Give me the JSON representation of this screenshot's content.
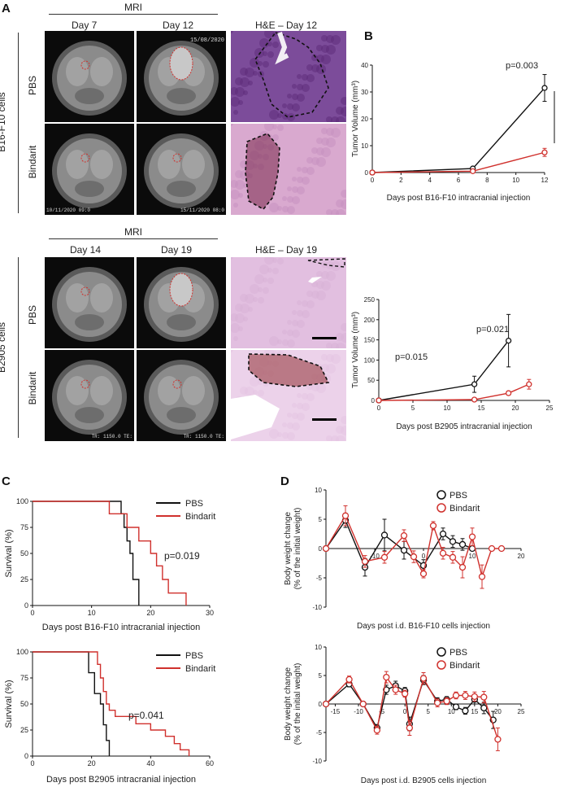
{
  "panel_labels": {
    "a": "A",
    "b": "B",
    "c": "C",
    "d": "D"
  },
  "panelA": {
    "top": {
      "mri_header": "MRI",
      "col_days": [
        "Day 7",
        "Day 12"
      ],
      "he_header": "H&E – Day 12",
      "rows": [
        "PBS",
        "Bindarit"
      ],
      "side_label": "B16-F10 cells",
      "overlay_texts": {
        "r0c1": "15/08/2020",
        "r1c0": "10/11/2020 09:0",
        "r1c1": "15/11/2020 08:0"
      }
    },
    "bottom": {
      "mri_header": "MRI",
      "col_days": [
        "Day 14",
        "Day 19"
      ],
      "he_header": "H&E – Day 19",
      "rows": [
        "PBS",
        "Bindarit"
      ],
      "side_label": "B2905 cells",
      "overlay_texts": {
        "r1c0": "TR: 1150.0 TE:",
        "r1c1": "TR: 1150.0 TE:"
      }
    }
  },
  "colors": {
    "pbs": "#111111",
    "bindarit": "#d0312d",
    "he_pink": "#c8a0c8",
    "he_purple": "#7a3a8c"
  },
  "chart_data": [
    {
      "id": "B1",
      "type": "line",
      "ylabel": "Tumor Volume (mm³)",
      "xlabel": "Days post B16-F10 intracranial injection",
      "xlim": [
        0,
        12
      ],
      "ylim": [
        0,
        40
      ],
      "xticks": [
        0,
        2,
        4,
        6,
        8,
        10,
        12
      ],
      "yticks": [
        0,
        10,
        20,
        30,
        40
      ],
      "series": [
        {
          "color": "#111111",
          "x": [
            0,
            7,
            12
          ],
          "y": [
            0,
            1.5,
            31.5
          ],
          "err": [
            0,
            0.5,
            5
          ]
        },
        {
          "color": "#d0312d",
          "x": [
            0,
            7,
            12
          ],
          "y": [
            0,
            0.5,
            7.5
          ],
          "err": [
            0,
            0.3,
            1.5
          ]
        }
      ],
      "annotations": [
        "p=0.003"
      ]
    },
    {
      "id": "B2",
      "type": "line",
      "ylabel": "Tumor Volume (mm³)",
      "xlabel": "Days post B2905 intracranial injection",
      "xlim": [
        0,
        25
      ],
      "ylim": [
        0,
        250
      ],
      "xticks": [
        0,
        5,
        10,
        15,
        20,
        25
      ],
      "yticks": [
        0,
        50,
        100,
        150,
        200,
        250
      ],
      "series": [
        {
          "color": "#111111",
          "x": [
            0,
            14,
            19
          ],
          "y": [
            0,
            40,
            148
          ],
          "err": [
            0,
            20,
            65
          ]
        },
        {
          "color": "#d0312d",
          "x": [
            0,
            14,
            19,
            22
          ],
          "y": [
            0,
            2,
            18,
            40
          ],
          "err": [
            0,
            1,
            5,
            12
          ]
        }
      ],
      "annotations": [
        "p=0.015",
        "p=0.021"
      ]
    },
    {
      "id": "C1",
      "type": "line",
      "ylabel": "Survival (%)",
      "xlabel": "Days post B16-F10 intracranial injection",
      "xlim": [
        0,
        30
      ],
      "ylim": [
        0,
        100
      ],
      "xticks": [
        0,
        10,
        20,
        30
      ],
      "yticks": [
        0,
        25,
        50,
        75,
        100
      ],
      "series": [
        {
          "name": "PBS",
          "color": "#111111",
          "steps": [
            [
              0,
              100
            ],
            [
              15,
              100
            ],
            [
              15,
              88
            ],
            [
              15.5,
              88
            ],
            [
              15.5,
              75
            ],
            [
              16,
              75
            ],
            [
              16,
              62
            ],
            [
              16.5,
              62
            ],
            [
              16.5,
              50
            ],
            [
              17,
              50
            ],
            [
              17,
              25
            ],
            [
              18,
              25
            ],
            [
              18,
              0
            ]
          ]
        },
        {
          "name": "Bindarit",
          "color": "#d0312d",
          "steps": [
            [
              0,
              100
            ],
            [
              13,
              100
            ],
            [
              13,
              88
            ],
            [
              16,
              88
            ],
            [
              16,
              75
            ],
            [
              18,
              75
            ],
            [
              18,
              62
            ],
            [
              20,
              62
            ],
            [
              20,
              50
            ],
            [
              21,
              50
            ],
            [
              21,
              38
            ],
            [
              22,
              38
            ],
            [
              22,
              25
            ],
            [
              23,
              25
            ],
            [
              23,
              12
            ],
            [
              26,
              12
            ],
            [
              26,
              0
            ]
          ]
        }
      ],
      "annotations": [
        "p=0.019"
      ]
    },
    {
      "id": "C2",
      "type": "line",
      "ylabel": "Survival (%)",
      "xlabel": "Days post B2905 intracranial injection",
      "xlim": [
        0,
        60
      ],
      "ylim": [
        0,
        100
      ],
      "xticks": [
        0,
        20,
        40,
        60
      ],
      "yticks": [
        0,
        25,
        50,
        75,
        100
      ],
      "series": [
        {
          "name": "PBS",
          "color": "#111111",
          "steps": [
            [
              0,
              100
            ],
            [
              19,
              100
            ],
            [
              19,
              80
            ],
            [
              21,
              80
            ],
            [
              21,
              60
            ],
            [
              23,
              60
            ],
            [
              23,
              50
            ],
            [
              24,
              50
            ],
            [
              24,
              30
            ],
            [
              25,
              30
            ],
            [
              25,
              15
            ],
            [
              26,
              15
            ],
            [
              26,
              0
            ]
          ]
        },
        {
          "name": "Bindarit",
          "color": "#d0312d",
          "steps": [
            [
              0,
              100
            ],
            [
              22,
              100
            ],
            [
              22,
              88
            ],
            [
              23,
              88
            ],
            [
              23,
              75
            ],
            [
              24,
              75
            ],
            [
              24,
              62
            ],
            [
              25,
              62
            ],
            [
              25,
              50
            ],
            [
              26,
              50
            ],
            [
              26,
              44
            ],
            [
              28,
              44
            ],
            [
              28,
              38
            ],
            [
              35,
              38
            ],
            [
              35,
              31
            ],
            [
              40,
              31
            ],
            [
              40,
              25
            ],
            [
              45,
              25
            ],
            [
              45,
              19
            ],
            [
              48,
              19
            ],
            [
              48,
              12
            ],
            [
              50,
              12
            ],
            [
              50,
              6
            ],
            [
              53,
              6
            ],
            [
              53,
              0
            ]
          ]
        }
      ],
      "annotations": [
        "p=0.041"
      ]
    },
    {
      "id": "D1",
      "type": "line",
      "ylabel": "Body weight change (% of the initial weight)",
      "xlabel": "Days post i.d. B16-F10 cells injection",
      "xlim": [
        -20,
        20
      ],
      "ylim": [
        -10,
        10
      ],
      "xticks": [
        -10,
        0,
        10,
        20
      ],
      "yticks": [
        -10,
        -5,
        0,
        5,
        10
      ],
      "series": [
        {
          "name": "PBS",
          "color": "#111111",
          "x": [
            -20,
            -16,
            -12,
            -8,
            -4,
            0,
            4,
            6,
            8,
            10
          ],
          "y": [
            0,
            4.8,
            -3.2,
            2.3,
            -0.3,
            -2.9,
            2.5,
            1.2,
            0.7,
            0
          ],
          "err": [
            0,
            1.2,
            1.5,
            2.7,
            1.5,
            1,
            1,
            1,
            1,
            0
          ]
        },
        {
          "name": "Bindarit",
          "color": "#d0312d",
          "x": [
            -20,
            -16,
            -12,
            -8,
            -4,
            -2,
            0,
            2,
            4,
            6,
            8,
            10,
            12,
            14,
            16
          ],
          "y": [
            0,
            5.6,
            -2.2,
            -1.5,
            2.2,
            -1.4,
            -4.3,
            3.9,
            -0.8,
            -1.5,
            -3.2,
            2.0,
            -4.8,
            0,
            0
          ],
          "err": [
            0,
            1.7,
            1,
            1,
            1,
            1,
            0.7,
            0.7,
            1,
            1,
            1.8,
            1.5,
            2,
            0,
            0
          ]
        }
      ]
    },
    {
      "id": "D2",
      "type": "line",
      "ylabel": "Body weight change (% of the initial weight)",
      "xlabel": "Days post i.d. B2905 cells injection",
      "xlim": [
        -17,
        25
      ],
      "ylim": [
        -10,
        10
      ],
      "xticks": [
        -15,
        -10,
        -5,
        0,
        5,
        10,
        15,
        20,
        25
      ],
      "yticks": [
        -10,
        -5,
        0,
        5,
        10
      ],
      "series": [
        {
          "name": "PBS",
          "color": "#111111",
          "x": [
            -17,
            -12,
            -9,
            -6,
            -4,
            -2,
            0,
            1,
            4,
            7,
            9,
            11,
            13,
            15,
            17,
            19
          ],
          "y": [
            0,
            3.5,
            0,
            -4.2,
            2.5,
            3.2,
            2.3,
            -3.5,
            4.2,
            0.5,
            0.8,
            -0.5,
            -1.2,
            0.8,
            -0.7,
            -2.8
          ],
          "err": [
            0,
            0.5,
            0,
            0.6,
            0.8,
            0.8,
            0.6,
            1.2,
            0.8,
            0.6,
            0.5,
            0.5,
            0.6,
            0.8,
            1,
            1.5
          ]
        },
        {
          "name": "Bindarit",
          "color": "#d0312d",
          "x": [
            -17,
            -12,
            -9,
            -6,
            -4,
            -2,
            0,
            1,
            4,
            7,
            9,
            11,
            13,
            15,
            17,
            20
          ],
          "y": [
            0,
            4.3,
            0,
            -4.6,
            4.7,
            2.5,
            1.8,
            -4.2,
            4.5,
            0.2,
            0.5,
            1.5,
            1.5,
            1.3,
            1.2,
            -6.2
          ],
          "err": [
            0,
            0.6,
            0,
            0.7,
            1,
            0.8,
            0.6,
            1.3,
            1,
            0.7,
            0.6,
            0.6,
            0.7,
            0.8,
            1,
            2
          ]
        }
      ]
    }
  ],
  "legend": {
    "pbs": "PBS",
    "bindarit": "Bindarit"
  }
}
